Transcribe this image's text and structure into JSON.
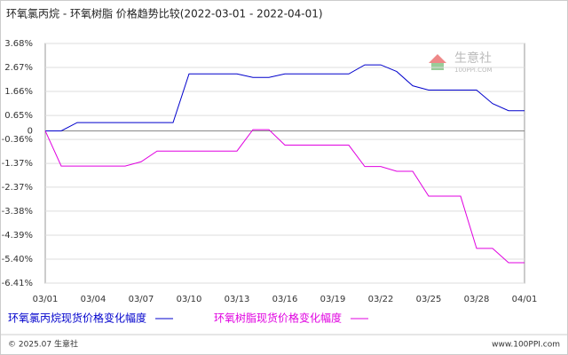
{
  "chart_data": {
    "type": "line",
    "title": "环氧氯丙烷 - 环氧树脂 价格趋势比较(2022-03-01 - 2022-04-01)",
    "categories": [
      "03/01",
      null,
      null,
      "03/04",
      null,
      null,
      "03/07",
      null,
      null,
      "03/10",
      null,
      null,
      "03/13",
      null,
      null,
      "03/16",
      null,
      null,
      "03/19",
      null,
      null,
      "03/22",
      null,
      null,
      "03/25",
      null,
      null,
      "03/28",
      null,
      null,
      "04/01"
    ],
    "series": [
      {
        "name": "环氧氯丙烷现货价格变化幅度",
        "color": "#0000cc",
        "values": [
          0,
          0,
          0.35,
          0.35,
          0.35,
          0.35,
          0.35,
          0.35,
          0.35,
          2.4,
          2.4,
          2.4,
          2.4,
          2.25,
          2.25,
          2.4,
          2.4,
          2.4,
          2.4,
          2.4,
          2.78,
          2.78,
          2.5,
          1.9,
          1.72,
          1.72,
          1.72,
          1.72,
          1.15,
          0.85,
          0.85
        ]
      },
      {
        "name": "环氧树脂现货价格变化幅度",
        "color": "#e000e0",
        "values": [
          0,
          -1.48,
          -1.48,
          -1.48,
          -1.48,
          -1.48,
          -1.3,
          -0.85,
          -0.85,
          -0.85,
          -0.85,
          -0.85,
          -0.85,
          0.05,
          0.05,
          -0.6,
          -0.6,
          -0.6,
          -0.6,
          -0.6,
          -1.5,
          -1.5,
          -1.7,
          -1.7,
          -2.75,
          -2.75,
          -2.75,
          -4.95,
          -4.95,
          -5.55,
          -5.55
        ]
      }
    ],
    "ylim": [
      -6.41,
      3.68
    ],
    "yticks": [
      {
        "value": 3.68,
        "label": "3.68%"
      },
      {
        "value": 2.67,
        "label": "2.67%"
      },
      {
        "value": 1.66,
        "label": "1.66%"
      },
      {
        "value": 0.65,
        "label": "0.65%"
      },
      0,
      {
        "value": -0.36,
        "label": "-0.36%"
      },
      {
        "value": -1.37,
        "label": "-1.37%"
      },
      {
        "value": -2.37,
        "label": "-2.37%"
      },
      {
        "value": -3.38,
        "label": "-3.38%"
      },
      {
        "value": -4.39,
        "label": "-4.39%"
      },
      {
        "value": -5.4,
        "label": "-5.40%"
      },
      {
        "value": -6.41,
        "label": "-6.41%"
      }
    ],
    "grid": true
  },
  "watermark": {
    "brand": "生意社",
    "site": "100PPI.COM"
  },
  "footer": {
    "copyright": "© 2025.07 生意社",
    "site": "www.100PPI.com"
  }
}
